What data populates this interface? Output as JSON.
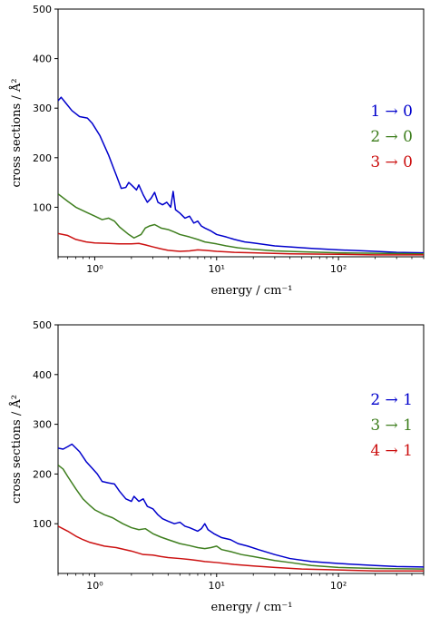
{
  "chart_data": [
    {
      "type": "line",
      "title": "",
      "xlabel": "energy / cm⁻¹",
      "ylabel": "cross sections / Å²",
      "xscale": "log",
      "xlim": [
        0.5,
        500
      ],
      "ylim": [
        0,
        500
      ],
      "yticks": [
        100,
        200,
        300,
        400,
        500
      ],
      "xticks": [
        {
          "value": 1,
          "label": "10⁰"
        },
        {
          "value": 10,
          "label": "10¹"
        },
        {
          "value": 100,
          "label": "10²"
        }
      ],
      "legend_position": "right",
      "grid": false,
      "series": [
        {
          "name": "1 → 0",
          "color": "#0000cc",
          "points": [
            [
              0.5,
              315
            ],
            [
              0.53,
              322
            ],
            [
              0.58,
              310
            ],
            [
              0.65,
              295
            ],
            [
              0.75,
              283
            ],
            [
              0.87,
              280
            ],
            [
              0.95,
              270
            ],
            [
              1.1,
              245
            ],
            [
              1.3,
              205
            ],
            [
              1.5,
              165
            ],
            [
              1.65,
              138
            ],
            [
              1.8,
              140
            ],
            [
              1.9,
              150
            ],
            [
              2.0,
              145
            ],
            [
              2.2,
              135
            ],
            [
              2.3,
              145
            ],
            [
              2.5,
              125
            ],
            [
              2.7,
              110
            ],
            [
              2.9,
              118
            ],
            [
              3.1,
              130
            ],
            [
              3.3,
              110
            ],
            [
              3.6,
              105
            ],
            [
              3.9,
              110
            ],
            [
              4.2,
              100
            ],
            [
              4.4,
              132
            ],
            [
              4.6,
              95
            ],
            [
              5.0,
              88
            ],
            [
              5.5,
              78
            ],
            [
              6.0,
              82
            ],
            [
              6.5,
              68
            ],
            [
              7.0,
              72
            ],
            [
              7.5,
              62
            ],
            [
              8.0,
              58
            ],
            [
              9.0,
              52
            ],
            [
              10,
              45
            ],
            [
              12,
              40
            ],
            [
              14,
              35
            ],
            [
              17,
              30
            ],
            [
              20,
              28
            ],
            [
              30,
              22
            ],
            [
              40,
              20
            ],
            [
              60,
              17
            ],
            [
              100,
              14
            ],
            [
              200,
              11
            ],
            [
              300,
              9
            ],
            [
              500,
              8
            ]
          ]
        },
        {
          "name": "2 → 0",
          "color": "#3f7f1f",
          "points": [
            [
              0.5,
              127
            ],
            [
              0.6,
              112
            ],
            [
              0.7,
              100
            ],
            [
              0.85,
              90
            ],
            [
              1.0,
              82
            ],
            [
              1.15,
              75
            ],
            [
              1.3,
              78
            ],
            [
              1.45,
              72
            ],
            [
              1.6,
              60
            ],
            [
              1.9,
              45
            ],
            [
              2.1,
              38
            ],
            [
              2.4,
              45
            ],
            [
              2.6,
              58
            ],
            [
              2.8,
              62
            ],
            [
              3.1,
              65
            ],
            [
              3.5,
              58
            ],
            [
              4.0,
              55
            ],
            [
              4.5,
              50
            ],
            [
              5.0,
              45
            ],
            [
              6.0,
              40
            ],
            [
              7.0,
              35
            ],
            [
              8.0,
              30
            ],
            [
              10,
              26
            ],
            [
              12,
              22
            ],
            [
              15,
              18
            ],
            [
              20,
              15
            ],
            [
              30,
              12
            ],
            [
              50,
              10
            ],
            [
              100,
              8
            ],
            [
              200,
              7
            ],
            [
              500,
              6
            ]
          ]
        },
        {
          "name": "3 → 0",
          "color": "#cc1111",
          "points": [
            [
              0.5,
              47
            ],
            [
              0.6,
              43
            ],
            [
              0.7,
              35
            ],
            [
              0.85,
              30
            ],
            [
              1.0,
              28
            ],
            [
              1.3,
              27
            ],
            [
              1.6,
              26
            ],
            [
              2.0,
              26
            ],
            [
              2.3,
              27
            ],
            [
              2.6,
              24
            ],
            [
              3.0,
              20
            ],
            [
              3.5,
              16
            ],
            [
              4.0,
              13
            ],
            [
              4.5,
              12
            ],
            [
              5.0,
              11
            ],
            [
              6.0,
              12
            ],
            [
              7.0,
              14
            ],
            [
              8.0,
              13
            ],
            [
              10,
              11
            ],
            [
              14,
              9
            ],
            [
              20,
              8
            ],
            [
              40,
              6
            ],
            [
              100,
              5
            ],
            [
              200,
              4
            ],
            [
              500,
              4
            ]
          ]
        }
      ]
    },
    {
      "type": "line",
      "title": "",
      "xlabel": "energy / cm⁻¹",
      "ylabel": "cross sections / Å²",
      "xscale": "log",
      "xlim": [
        0.5,
        500
      ],
      "ylim": [
        0,
        500
      ],
      "yticks": [
        100,
        200,
        300,
        400,
        500
      ],
      "xticks": [
        {
          "value": 1,
          "label": "10⁰"
        },
        {
          "value": 10,
          "label": "10¹"
        },
        {
          "value": 100,
          "label": "10²"
        }
      ],
      "legend_position": "right",
      "grid": false,
      "series": [
        {
          "name": "2 → 1",
          "color": "#0000cc",
          "points": [
            [
              0.5,
              252
            ],
            [
              0.55,
              250
            ],
            [
              0.6,
              255
            ],
            [
              0.65,
              260
            ],
            [
              0.75,
              245
            ],
            [
              0.85,
              225
            ],
            [
              0.95,
              212
            ],
            [
              1.05,
              200
            ],
            [
              1.15,
              185
            ],
            [
              1.3,
              182
            ],
            [
              1.45,
              180
            ],
            [
              1.6,
              165
            ],
            [
              1.8,
              150
            ],
            [
              2.0,
              145
            ],
            [
              2.1,
              155
            ],
            [
              2.3,
              145
            ],
            [
              2.5,
              150
            ],
            [
              2.7,
              135
            ],
            [
              3.0,
              130
            ],
            [
              3.3,
              118
            ],
            [
              3.6,
              110
            ],
            [
              4.0,
              105
            ],
            [
              4.5,
              100
            ],
            [
              5.0,
              103
            ],
            [
              5.5,
              95
            ],
            [
              6.0,
              92
            ],
            [
              7.0,
              85
            ],
            [
              7.5,
              90
            ],
            [
              8.0,
              100
            ],
            [
              8.5,
              88
            ],
            [
              9.5,
              80
            ],
            [
              11,
              72
            ],
            [
              13,
              68
            ],
            [
              15,
              60
            ],
            [
              18,
              55
            ],
            [
              22,
              48
            ],
            [
              30,
              38
            ],
            [
              40,
              30
            ],
            [
              60,
              24
            ],
            [
              100,
              20
            ],
            [
              200,
              16
            ],
            [
              300,
              14
            ],
            [
              500,
              13
            ]
          ]
        },
        {
          "name": "3 → 1",
          "color": "#3f7f1f",
          "points": [
            [
              0.5,
              218
            ],
            [
              0.55,
              210
            ],
            [
              0.6,
              195
            ],
            [
              0.7,
              170
            ],
            [
              0.8,
              150
            ],
            [
              0.9,
              138
            ],
            [
              1.0,
              128
            ],
            [
              1.2,
              118
            ],
            [
              1.4,
              112
            ],
            [
              1.7,
              100
            ],
            [
              2.0,
              92
            ],
            [
              2.3,
              88
            ],
            [
              2.6,
              90
            ],
            [
              3.0,
              80
            ],
            [
              3.5,
              73
            ],
            [
              4.0,
              68
            ],
            [
              5.0,
              60
            ],
            [
              6.0,
              56
            ],
            [
              7.0,
              52
            ],
            [
              8.0,
              50
            ],
            [
              9.0,
              52
            ],
            [
              10,
              55
            ],
            [
              11,
              48
            ],
            [
              13,
              44
            ],
            [
              16,
              38
            ],
            [
              20,
              34
            ],
            [
              30,
              26
            ],
            [
              40,
              22
            ],
            [
              60,
              16
            ],
            [
              100,
              12
            ],
            [
              200,
              10
            ],
            [
              500,
              9
            ]
          ]
        },
        {
          "name": "4 → 1",
          "color": "#cc1111",
          "points": [
            [
              0.5,
              95
            ],
            [
              0.6,
              85
            ],
            [
              0.7,
              75
            ],
            [
              0.8,
              68
            ],
            [
              0.9,
              63
            ],
            [
              1.0,
              60
            ],
            [
              1.2,
              55
            ],
            [
              1.5,
              52
            ],
            [
              2.0,
              45
            ],
            [
              2.5,
              38
            ],
            [
              3.0,
              37
            ],
            [
              3.5,
              34
            ],
            [
              4.0,
              32
            ],
            [
              5.0,
              30
            ],
            [
              6.0,
              28
            ],
            [
              7.0,
              26
            ],
            [
              8.0,
              24
            ],
            [
              10,
              22
            ],
            [
              14,
              18
            ],
            [
              20,
              15
            ],
            [
              30,
              12
            ],
            [
              50,
              9
            ],
            [
              100,
              7
            ],
            [
              200,
              5
            ],
            [
              500,
              5
            ]
          ]
        }
      ]
    }
  ]
}
